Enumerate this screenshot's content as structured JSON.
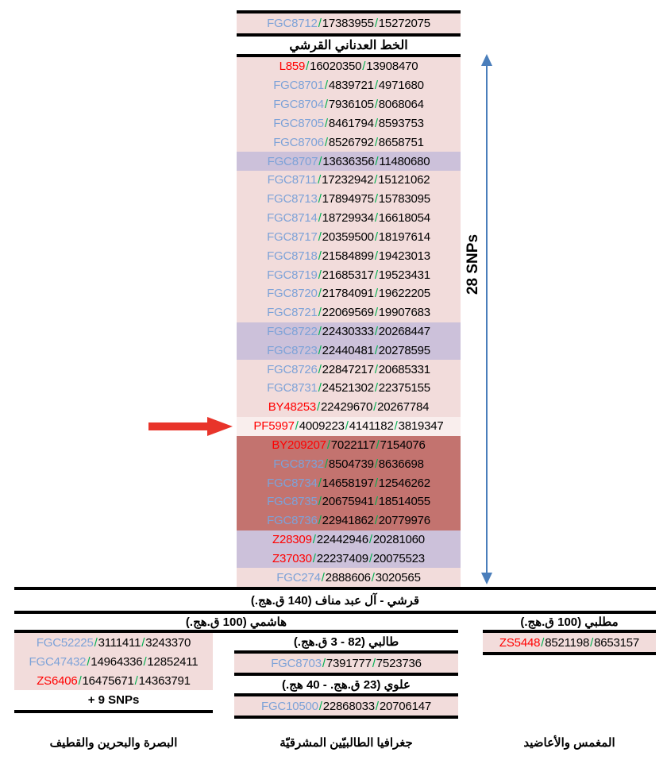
{
  "colors": {
    "row_pink": "#F2DCDB",
    "row_purple": "#CCC1DA",
    "row_darkred": "#C3736F",
    "row_highlight": "#F9EEED",
    "snp_blue": "#7DA2D8",
    "snp_red": "#FF0000",
    "slash_green": "#00B050",
    "arrow_red": "#E8342A",
    "arrow_blue": "#4A7EBB"
  },
  "top": {
    "root_rows": [
      {
        "name": "FGC8712",
        "name_color": "blue",
        "bg": "pink",
        "values": [
          "17383955",
          "15272075"
        ]
      }
    ],
    "header": "الخط العدناني القرشي"
  },
  "main_rows": [
    {
      "name": "L859",
      "name_color": "red",
      "bg": "pink",
      "values": [
        "16020350",
        "13908470"
      ]
    },
    {
      "name": "FGC8701",
      "name_color": "blue",
      "bg": "pink",
      "values": [
        "4839721",
        "4971680"
      ]
    },
    {
      "name": "FGC8704",
      "name_color": "blue",
      "bg": "pink",
      "values": [
        "7936105",
        "8068064"
      ]
    },
    {
      "name": "FGC8705",
      "name_color": "blue",
      "bg": "pink",
      "values": [
        "8461794",
        "8593753"
      ]
    },
    {
      "name": "FGC8706",
      "name_color": "blue",
      "bg": "pink",
      "values": [
        "8526792",
        "8658751"
      ]
    },
    {
      "name": "FGC8707",
      "name_color": "blue",
      "bg": "purple",
      "values": [
        "13636356",
        "11480680"
      ]
    },
    {
      "name": "FGC8711",
      "name_color": "blue",
      "bg": "pink",
      "values": [
        "17232942",
        "15121062"
      ]
    },
    {
      "name": "FGC8713",
      "name_color": "blue",
      "bg": "pink",
      "values": [
        "17894975",
        "15783095"
      ]
    },
    {
      "name": "FGC8714",
      "name_color": "blue",
      "bg": "pink",
      "values": [
        "18729934",
        "16618054"
      ]
    },
    {
      "name": "FGC8717",
      "name_color": "blue",
      "bg": "pink",
      "values": [
        "20359500",
        "18197614"
      ]
    },
    {
      "name": "FGC8718",
      "name_color": "blue",
      "bg": "pink",
      "values": [
        "21584899",
        "19423013"
      ]
    },
    {
      "name": "FGC8719",
      "name_color": "blue",
      "bg": "pink",
      "values": [
        "21685317",
        "19523431"
      ]
    },
    {
      "name": "FGC8720",
      "name_color": "blue",
      "bg": "pink",
      "values": [
        "21784091",
        "19622205"
      ]
    },
    {
      "name": "FGC8721",
      "name_color": "blue",
      "bg": "pink",
      "values": [
        "22069569",
        "19907683"
      ]
    },
    {
      "name": "FGC8722",
      "name_color": "blue",
      "bg": "purple",
      "values": [
        "22430333",
        "20268447"
      ]
    },
    {
      "name": "FGC8723",
      "name_color": "blue",
      "bg": "purple",
      "values": [
        "22440481",
        "20278595"
      ]
    },
    {
      "name": "FGC8726",
      "name_color": "blue",
      "bg": "pink",
      "values": [
        "22847217",
        "20685331"
      ]
    },
    {
      "name": "FGC8731",
      "name_color": "blue",
      "bg": "pink",
      "values": [
        "24521302",
        "22375155"
      ]
    },
    {
      "name": "BY48253",
      "name_color": "red",
      "bg": "pink",
      "values": [
        "22429670",
        "20267784"
      ]
    },
    {
      "name": "PF5997",
      "name_color": "red",
      "bg": "highlight",
      "values": [
        "4009223",
        "4141182",
        "3819347"
      ]
    },
    {
      "name": "BY209207",
      "name_color": "red",
      "bg": "darkred",
      "values": [
        "7022117",
        "7154076"
      ]
    },
    {
      "name": "FGC8732",
      "name_color": "blue",
      "bg": "darkred",
      "values": [
        "8504739",
        "8636698"
      ]
    },
    {
      "name": "FGC8734",
      "name_color": "blue",
      "bg": "darkred",
      "values": [
        "14658197",
        "12546262"
      ]
    },
    {
      "name": "FGC8735",
      "name_color": "blue",
      "bg": "darkred",
      "values": [
        "20675941",
        "18514055"
      ]
    },
    {
      "name": "FGC8736",
      "name_color": "blue",
      "bg": "darkred",
      "values": [
        "22941862",
        "20779976"
      ]
    },
    {
      "name": "Z28309",
      "name_color": "red",
      "bg": "purple",
      "values": [
        "22442946",
        "20281060"
      ]
    },
    {
      "name": "Z37030",
      "name_color": "red",
      "bg": "purple",
      "values": [
        "22237409",
        "20075523"
      ]
    },
    {
      "name": "FGC274",
      "name_color": "blue",
      "bg": "pink",
      "values": [
        "2888606",
        "3020565"
      ]
    }
  ],
  "snp_count_label": "28 SNPs",
  "quraysh_label": "قرشي - آل عبد مناف (140 ق.هج.)",
  "hashimi_header": "هاشمي (100 ق.هج.)",
  "muttalibi_header": "مطلبي (100 ق.هج.)",
  "left_branch": {
    "rows": [
      {
        "name": "FGC52225",
        "name_color": "blue",
        "bg": "pink",
        "values": [
          "3111411",
          "3243370"
        ]
      },
      {
        "name": "FGC47432",
        "name_color": "blue",
        "bg": "pink",
        "values": [
          "14964336",
          "12852411"
        ]
      },
      {
        "name": "ZS6406",
        "name_color": "red",
        "bg": "pink",
        "values": [
          "16475671",
          "14363791"
        ]
      }
    ],
    "extra_label": "+ 9 SNPs",
    "footer": "البصرة والبحرين والقطيف"
  },
  "talibi_branch": {
    "header": "طالبي (82 - 3 ق.هج.)",
    "rows": [
      {
        "name": "FGC8703",
        "name_color": "blue",
        "bg": "pink",
        "values": [
          "7391777",
          "7523736"
        ]
      }
    ],
    "alawi_header": "علوي (23 ق.هج. - 40 هج.)",
    "alawi_rows": [
      {
        "name": "FGC10500",
        "name_color": "blue",
        "bg": "pink",
        "values": [
          "22868033",
          "20706147"
        ]
      }
    ],
    "footer": "جغرافيا الطالبيّين المشرقيّة"
  },
  "muttalibi_branch": {
    "rows": [
      {
        "name": "ZS5448",
        "name_color": "red",
        "bg": "pink",
        "values": [
          "8521198",
          "8653157"
        ]
      }
    ],
    "footer": "المغمس والأعاضيد"
  }
}
